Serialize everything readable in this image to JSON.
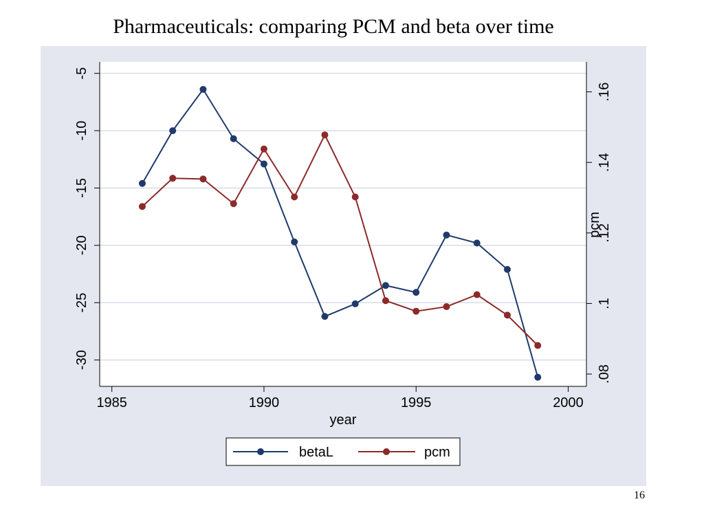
{
  "slide": {
    "title": "Pharmaceuticals: comparing PCM and beta over time",
    "page_number": "16"
  },
  "colors": {
    "panel_background": "#e4e7f0",
    "plot_background": "#ffffff",
    "grid": "#d8dce8",
    "betaL": "#1f3a6b",
    "pcm": "#8c2a2a"
  },
  "chart_data": {
    "type": "line",
    "xlabel": "year",
    "ylabel_left": "",
    "ylabel_right": "pcm",
    "xlim": [
      1984.6,
      2000.6
    ],
    "ylim_left": [
      -32.3,
      -4.0
    ],
    "ylim_right": [
      0.0765,
      0.1685
    ],
    "x_ticks": [
      1985,
      1990,
      1995,
      2000
    ],
    "x_tick_labels": [
      "1985",
      "1990",
      "1995",
      "2000"
    ],
    "y_left_ticks": [
      -30,
      -25,
      -20,
      -15,
      -10,
      -5
    ],
    "y_left_tick_labels": [
      "-30",
      "-25",
      "-20",
      "-15",
      "-10",
      "-5"
    ],
    "y_right_ticks": [
      0.08,
      0.1,
      0.12,
      0.14,
      0.16
    ],
    "y_right_tick_labels": [
      ".08",
      ".1",
      ".12",
      ".14",
      ".16"
    ],
    "grid": true,
    "legend_position": "bottom",
    "series": [
      {
        "name": "betaL",
        "axis": "left",
        "x": [
          1986,
          1987,
          1988,
          1989,
          1990,
          1991,
          1992,
          1993,
          1994,
          1995,
          1996,
          1997,
          1998,
          1999
        ],
        "values": [
          -14.6,
          -10.0,
          -6.4,
          -10.7,
          -12.9,
          -19.7,
          -26.2,
          -25.1,
          -23.5,
          -24.1,
          -19.1,
          -19.8,
          -22.1,
          -31.5
        ]
      },
      {
        "name": "pcm",
        "axis": "right",
        "x": [
          1986,
          1987,
          1988,
          1989,
          1990,
          1991,
          1992,
          1993,
          1994,
          1995,
          1996,
          1997,
          1998,
          1999
        ],
        "values": [
          0.1275,
          0.1355,
          0.1353,
          0.1283,
          0.1438,
          0.1302,
          0.1478,
          0.1302,
          0.1008,
          0.0978,
          0.0991,
          0.1025,
          0.0967,
          0.0881
        ]
      }
    ]
  }
}
